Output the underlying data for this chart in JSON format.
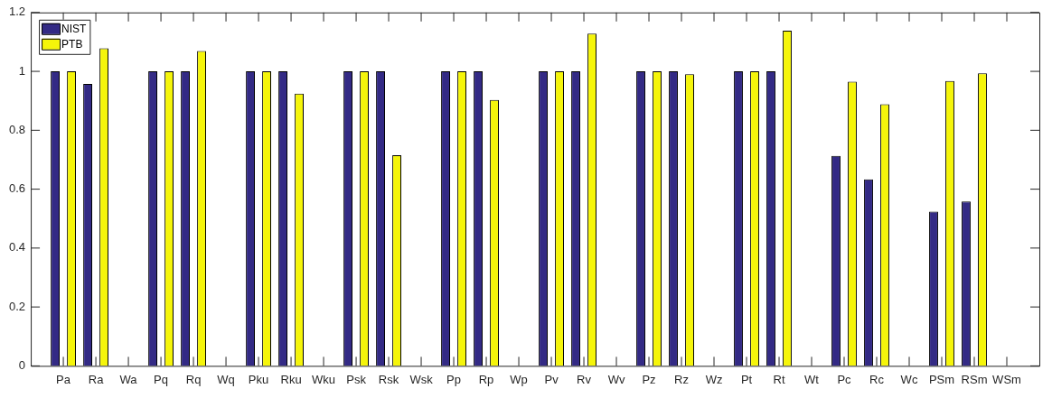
{
  "chart_data": {
    "type": "bar",
    "categories": [
      "Pa",
      "Ra",
      "Wa",
      "Pq",
      "Rq",
      "Wq",
      "Pku",
      "Rku",
      "Wku",
      "Psk",
      "Rsk",
      "Wsk",
      "Pp",
      "Rp",
      "Wp",
      "Pv",
      "Rv",
      "Wv",
      "Pz",
      "Rz",
      "Wz",
      "Pt",
      "Rt",
      "Wt",
      "Pc",
      "Rc",
      "Wc",
      "PSm",
      "RSm",
      "WSm"
    ],
    "series": [
      {
        "name": "NIST",
        "color": "#332a85",
        "values": [
          1,
          0.957,
          null,
          1,
          1,
          null,
          1,
          1,
          null,
          1,
          1,
          null,
          1,
          1,
          null,
          1,
          1,
          null,
          1,
          1,
          null,
          1,
          1,
          null,
          0.713,
          0.633,
          null,
          0.524,
          0.558,
          null
        ]
      },
      {
        "name": "PTB",
        "color": "#f5f50a",
        "values": [
          1,
          1.078,
          null,
          1,
          1.069,
          null,
          1,
          0.924,
          null,
          1,
          0.715,
          null,
          1,
          0.903,
          null,
          1,
          1.128,
          null,
          1,
          0.99,
          null,
          1,
          1.138,
          null,
          0.965,
          0.888,
          null,
          0.967,
          0.993,
          null
        ]
      }
    ],
    "ylim": [
      0,
      1.2
    ],
    "yticks": [
      0,
      0.2,
      0.4,
      0.6,
      0.8,
      1,
      1.2
    ],
    "grid": false,
    "legend": "top left"
  }
}
